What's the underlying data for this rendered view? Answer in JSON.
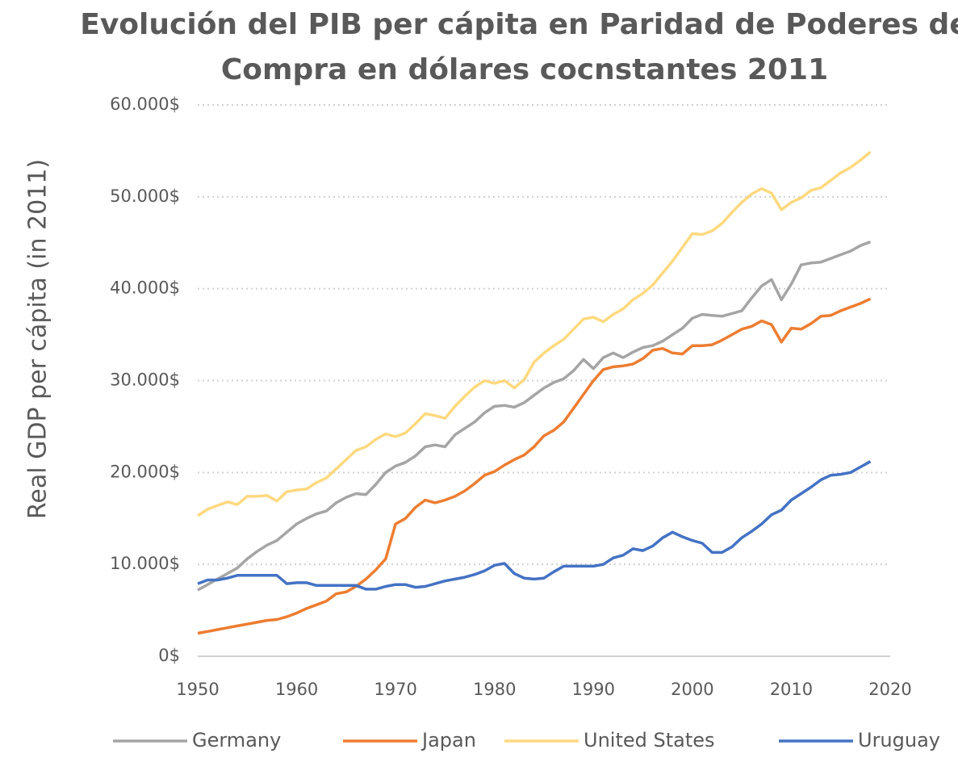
{
  "chart_data": {
    "type": "line",
    "title": [
      "Evolución  del PIB per cápita en Paridad de Poderes de",
      "Compra en dólares cocnstantes 2011"
    ],
    "y_label": "Real GDP per cápita (in 2011)",
    "x": [
      1950,
      1951,
      1952,
      1953,
      1954,
      1955,
      1956,
      1957,
      1958,
      1959,
      1960,
      1961,
      1962,
      1963,
      1964,
      1965,
      1966,
      1967,
      1968,
      1969,
      1970,
      1971,
      1972,
      1973,
      1974,
      1975,
      1976,
      1977,
      1978,
      1979,
      1980,
      1981,
      1982,
      1983,
      1984,
      1985,
      1986,
      1987,
      1988,
      1989,
      1990,
      1991,
      1992,
      1993,
      1994,
      1995,
      1996,
      1997,
      1998,
      1999,
      2000,
      2001,
      2002,
      2003,
      2004,
      2005,
      2006,
      2007,
      2008,
      2009,
      2010,
      2011,
      2012,
      2013,
      2014,
      2015,
      2016,
      2017,
      2018
    ],
    "series": [
      {
        "name": "Germany",
        "color": "#a5a5a5",
        "values": [
          7200,
          7800,
          8400,
          9000,
          9600,
          10600,
          11400,
          12100,
          12600,
          13500,
          14400,
          15000,
          15500,
          15800,
          16700,
          17300,
          17700,
          17600,
          18700,
          20000,
          20700,
          21100,
          21800,
          22800,
          23000,
          22800,
          24100,
          24800,
          25500,
          26500,
          27200,
          27300,
          27100,
          27600,
          28400,
          29200,
          29800,
          30200,
          31100,
          32300,
          31300,
          32500,
          33000,
          32500,
          33100,
          33600,
          33800,
          34300,
          35000,
          35700,
          36800,
          37200,
          37100,
          37000,
          37300,
          37600,
          39000,
          40300,
          41000,
          38800,
          40500,
          42600,
          42800,
          42900,
          43300,
          43700,
          44100,
          44700,
          45100
        ]
      },
      {
        "name": "Japan",
        "color": "#ed7d31",
        "values": [
          2500,
          2700,
          2900,
          3100,
          3300,
          3500,
          3700,
          3900,
          4000,
          4300,
          4700,
          5200,
          5600,
          6000,
          6800,
          7000,
          7600,
          8400,
          9400,
          10600,
          14400,
          15000,
          16200,
          17000,
          16700,
          17000,
          17400,
          18000,
          18800,
          19700,
          20100,
          20800,
          21400,
          21900,
          22800,
          24000,
          24600,
          25500,
          27000,
          28500,
          30000,
          31200,
          31500,
          31600,
          31800,
          32400,
          33300,
          33500,
          33000,
          32900,
          33800,
          33800,
          33900,
          34400,
          35000,
          35600,
          35900,
          36500,
          36100,
          34200,
          35700,
          35600,
          36200,
          37000,
          37100,
          37600,
          38000,
          38400,
          38900
        ]
      },
      {
        "name": "United States",
        "color": "#ffd97f",
        "values": [
          15300,
          16000,
          16400,
          16800,
          16500,
          17400,
          17400,
          17500,
          16900,
          17900,
          18100,
          18200,
          18900,
          19400,
          20400,
          21400,
          22400,
          22800,
          23600,
          24200,
          23900,
          24300,
          25300,
          26400,
          26200,
          25900,
          27200,
          28300,
          29300,
          30000,
          29700,
          30000,
          29200,
          30100,
          32000,
          33000,
          33800,
          34500,
          35600,
          36700,
          36900,
          36400,
          37200,
          37800,
          38800,
          39500,
          40400,
          41700,
          43000,
          44500,
          46000,
          45900,
          46300,
          47100,
          48300,
          49400,
          50300,
          50900,
          50400,
          48600,
          49400,
          49900,
          50700,
          51000,
          51800,
          52600,
          53200,
          54000,
          54900
        ]
      },
      {
        "name": "Uruguay",
        "color": "#4472c4",
        "values": [
          7900,
          8300,
          8300,
          8500,
          8800,
          8800,
          8800,
          8800,
          8800,
          7900,
          8000,
          8000,
          7700,
          7700,
          7700,
          7700,
          7700,
          7300,
          7300,
          7600,
          7800,
          7800,
          7500,
          7600,
          7900,
          8200,
          8400,
          8600,
          8900,
          9300,
          9900,
          10100,
          9000,
          8500,
          8400,
          8500,
          9200,
          9800,
          9800,
          9800,
          9800,
          10000,
          10700,
          11000,
          11700,
          11500,
          12000,
          12900,
          13500,
          13000,
          12600,
          12300,
          11300,
          11300,
          11900,
          12900,
          13600,
          14400,
          15400,
          15900,
          17000,
          17700,
          18400,
          19200,
          19700,
          19800,
          20000,
          20600,
          21200
        ]
      }
    ],
    "xlim": [
      1950,
      2020
    ],
    "xticks": [
      1950,
      1960,
      1970,
      1980,
      1990,
      2000,
      2010,
      2020
    ],
    "ylim": [
      0,
      60000
    ],
    "yticks": [
      {
        "value": 0,
        "label": "0$"
      },
      {
        "value": 10000,
        "label": "10.000$"
      },
      {
        "value": 20000,
        "label": "20.000$"
      },
      {
        "value": 30000,
        "label": "30.000$"
      },
      {
        "value": 40000,
        "label": "40.000$"
      },
      {
        "value": 50000,
        "label": "50.000$"
      },
      {
        "value": 60000,
        "label": "60.000$"
      }
    ],
    "grid": true,
    "legend": "bottom"
  }
}
